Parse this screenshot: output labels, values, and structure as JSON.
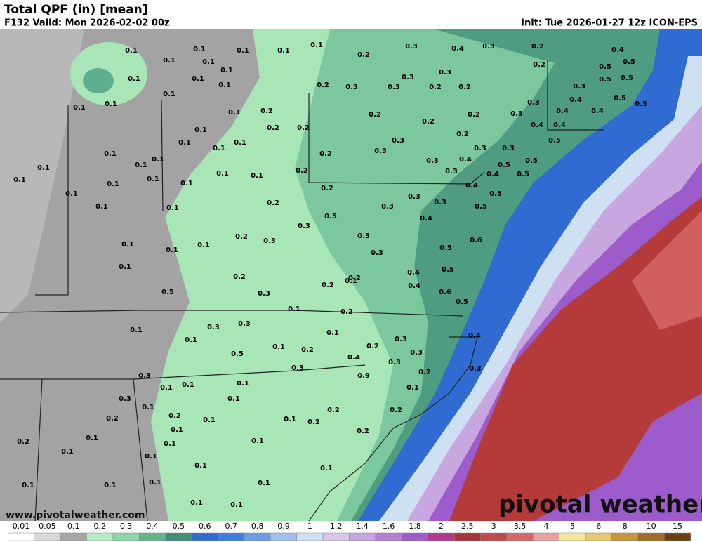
{
  "header": {
    "title": "Total QPF (in) [mean]",
    "valid": "F132 Valid: Mon 2026-02-02 00z",
    "init": "Init: Tue 2026-01-27 12z ICON-EPS"
  },
  "watermark": "pivotal weather",
  "website": "www.pivotalweather.com",
  "colorbar": {
    "labels": [
      0.01,
      0.05,
      0.1,
      0.2,
      0.3,
      0.4,
      0.5,
      0.6,
      0.7,
      0.8,
      0.9,
      1,
      1.2,
      1.4,
      1.6,
      1.8,
      2,
      2.5,
      3,
      3.5,
      4,
      5,
      6,
      8,
      10,
      15
    ],
    "colors": [
      "#ffffff",
      "#d9d9d9",
      "#a6a6a6",
      "#b6ecc3",
      "#8ed6a6",
      "#66b48a",
      "#3f8f78",
      "#2f6bd0",
      "#3d7ee0",
      "#6e9de6",
      "#9fc0ec",
      "#cfe0f2",
      "#d9c6ea",
      "#c8a6e0",
      "#b27fd3",
      "#9d5ccb",
      "#b03a8c",
      "#a8323a",
      "#c04a4a",
      "#d36a6a",
      "#e8a0a0",
      "#f5e6a0",
      "#e9c76e",
      "#c9963f",
      "#a46a2a",
      "#6e3f14"
    ]
  },
  "map_labels": [
    0.1,
    0.1,
    0.1,
    0.1,
    0.1,
    0.1,
    0.1,
    0.2,
    0.3,
    0.4,
    0.3,
    0.2,
    0.4,
    0.1,
    0.1,
    0.1,
    0.1,
    0.1,
    0.1,
    0.1,
    0.2,
    0.3,
    0.3,
    0.2,
    0.2,
    0.3,
    0.3,
    0.2,
    0.5,
    0.5,
    0.5,
    0.5,
    0.3,
    0.4,
    0.3,
    0.1,
    0.2,
    0.2,
    0.2,
    0.2,
    0.2,
    0.2,
    0.3,
    0.4,
    0.4,
    0.5,
    0.5,
    0.1,
    0.1,
    0.1,
    0.1,
    0.2,
    0.3,
    0.3,
    0.2,
    0.3,
    0.3,
    0.4,
    0.4,
    0.5,
    0.1,
    0.1,
    0.1,
    0.1,
    0.1,
    0.1,
    0.1,
    0.1,
    0.1,
    0.1,
    0.2,
    0.3,
    0.3,
    0.4,
    0.5,
    0.5,
    0.5,
    0.1,
    0.1,
    0.1,
    0.2,
    0.2,
    0.3,
    0.3,
    0.4,
    0.4,
    0.5,
    0.5,
    0.5,
    0.3,
    0.4,
    0.3,
    0.2,
    0.3,
    0.3,
    0.3,
    0.1,
    0.1,
    0.1,
    0.5,
    0.6,
    0.1,
    0.2,
    0.3,
    0.2,
    0.2,
    0.4,
    0.4,
    0.5,
    0.5,
    0.6,
    0.5,
    0.1,
    0.2,
    0.3,
    0.3,
    0.1,
    0.1,
    0.1,
    0.3,
    0.4,
    0.5,
    0.1,
    0.2,
    0.2,
    0.3,
    0.4,
    0.3,
    0.3,
    0.2,
    0.3,
    0.9,
    0.3,
    0.1,
    0.1,
    0.1,
    0.1,
    0.3,
    0.1,
    0.1,
    0.2,
    0.2,
    0.2,
    0.1,
    0.1,
    0.2,
    0.2,
    0.1,
    0.1,
    0.1,
    0.2,
    0.2,
    0.1,
    0.1,
    0.1,
    0.1,
    0.1,
    0.1,
    0.1,
    0.1,
    0.1,
    0.1,
    0.1,
    0.1
  ]
}
